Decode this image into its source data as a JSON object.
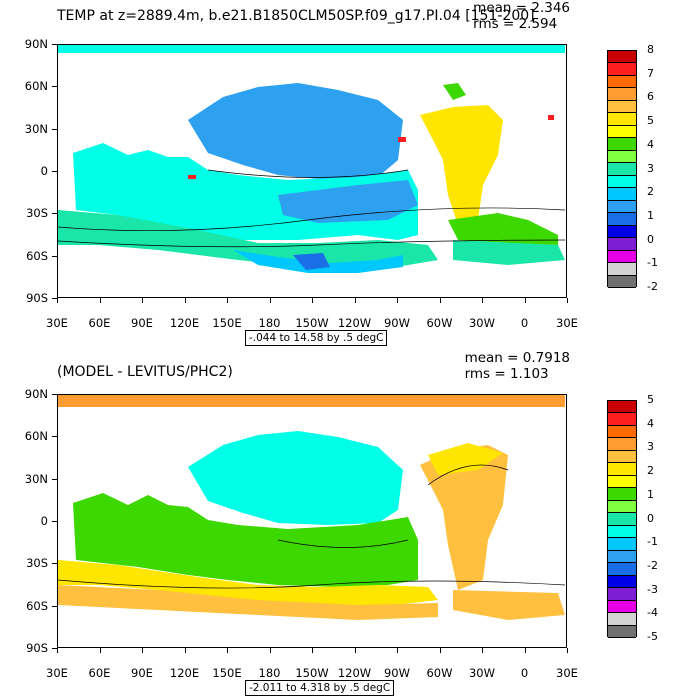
{
  "top_panel": {
    "title": "TEMP at z=2889.4m, b.e21.B1850CLM50SP.f09_g17.PI.04 [151-200]",
    "mean": "mean = 2.346",
    "rms": "rms = 2.594",
    "caption": "-.044 to 14.58 by .5 degC",
    "colorbar_labels": [
      "8",
      "7",
      "6",
      "5",
      "4",
      "3",
      "2",
      "1",
      "0",
      "-1",
      "-2"
    ],
    "colorbar_colors": [
      "#c80000",
      "#ff1e1e",
      "#ff6a00",
      "#ff9c32",
      "#ffc040",
      "#ffe600",
      "#ffff00",
      "#3cd800",
      "#80ff40",
      "#19e6a8",
      "#00ffe6",
      "#00c8ff",
      "#2ea0f0",
      "#1a6ee6",
      "#0000e6",
      "#7d1ed2",
      "#e600e6",
      "#d2d2d2",
      "#707070"
    ]
  },
  "bottom_panel": {
    "title": "(MODEL - LEVITUS/PHC2)",
    "mean": "mean = 0.7918",
    "rms": "rms = 1.103",
    "caption": "-2.011 to 4.318 by .5 degC",
    "colorbar_labels": [
      "5",
      "4",
      "3",
      "2",
      "1",
      "0",
      "-1",
      "-2",
      "-3",
      "-4",
      "-5"
    ],
    "colorbar_colors": [
      "#c80000",
      "#ff1e1e",
      "#ff6a00",
      "#ff9c32",
      "#ffc040",
      "#ffe600",
      "#ffff00",
      "#3cd800",
      "#80ff40",
      "#19e6a8",
      "#00ffe6",
      "#00c8ff",
      "#2ea0f0",
      "#1a6ee6",
      "#0000e6",
      "#7d1ed2",
      "#e600e6",
      "#d2d2d2",
      "#707070"
    ]
  },
  "axes": {
    "lat_labels": [
      "90N",
      "60N",
      "30N",
      "0",
      "30S",
      "60S",
      "90S"
    ],
    "lon_labels": [
      "30E",
      "60E",
      "90E",
      "120E",
      "150E",
      "180",
      "150W",
      "120W",
      "90W",
      "60W",
      "30W",
      "0",
      "30E"
    ]
  },
  "colors": {
    "land": "#ffffff",
    "warm_yellow": "#ffe600",
    "orange": "#ffc040",
    "deep_orange": "#ff9c32",
    "green": "#3cd800",
    "cyan": "#00ffe6",
    "aqua": "#19e6a8",
    "sky": "#00c8ff",
    "blue": "#2ea0f0",
    "dark_blue": "#1a6ee6",
    "red": "#ff1e1e"
  }
}
